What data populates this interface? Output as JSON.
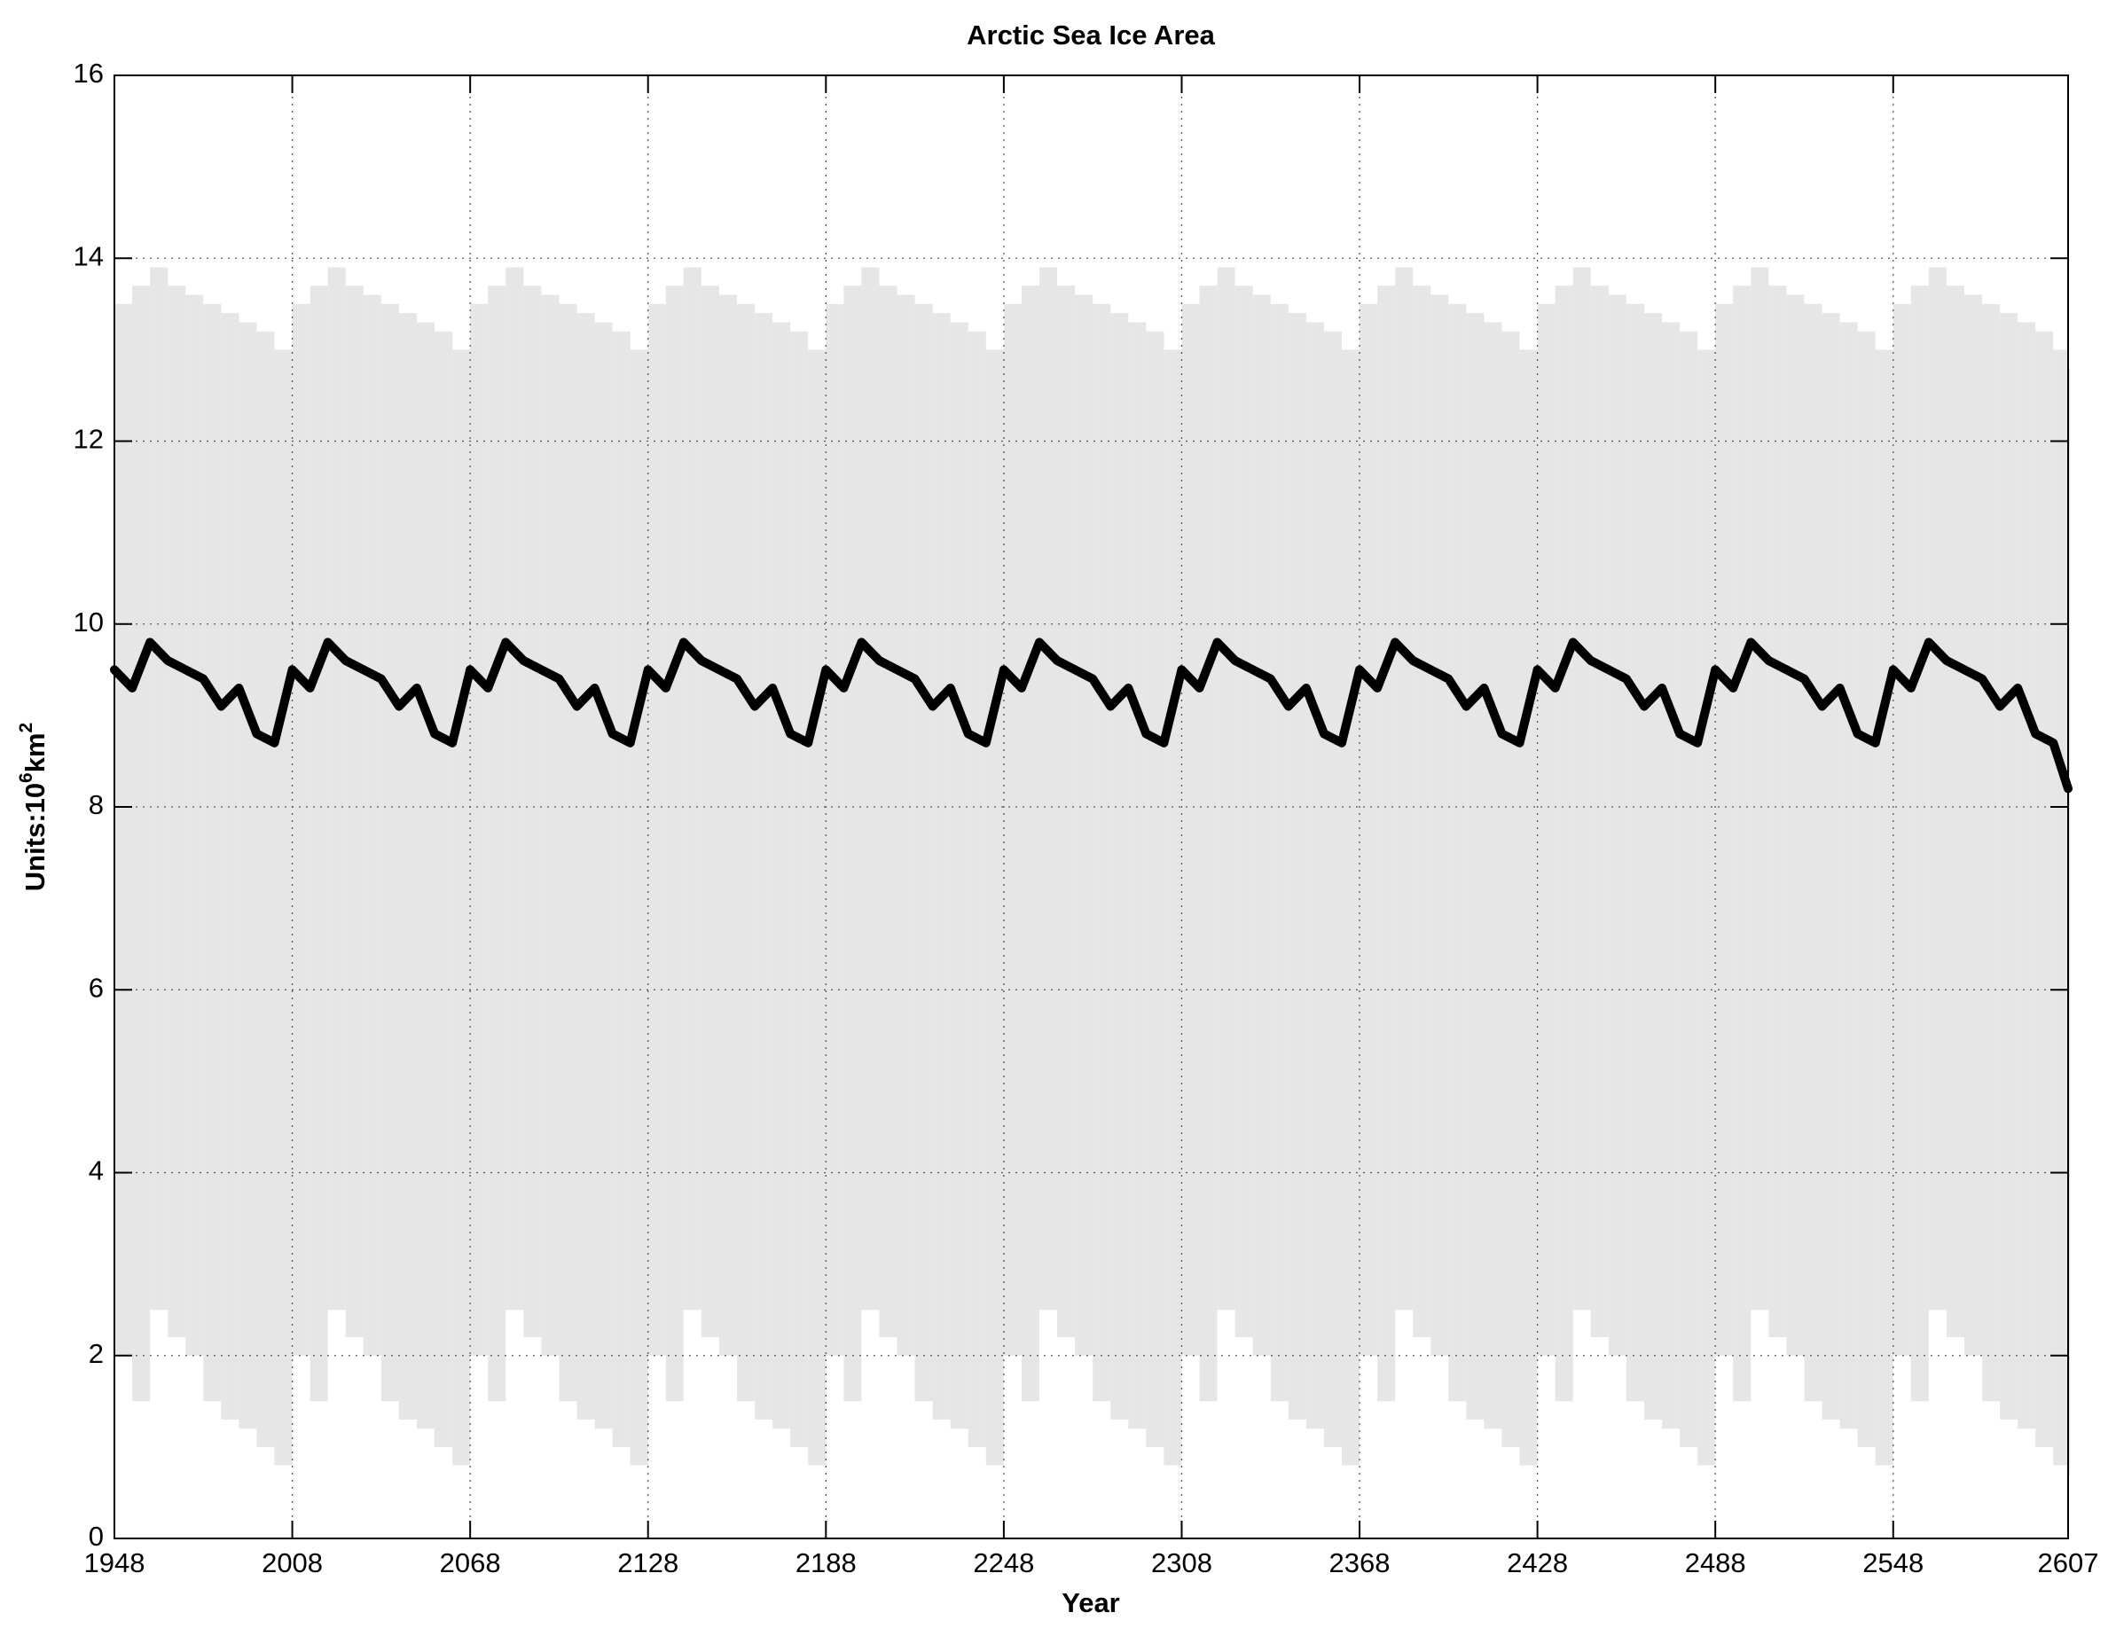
{
  "chart_data": {
    "type": "line",
    "title": "Arctic Sea Ice Area",
    "xlabel": "Year",
    "ylabel_parts": [
      "Units:10",
      "6",
      "km",
      "2"
    ],
    "x": [
      1948,
      1954,
      1960,
      1966,
      1972,
      1978,
      1984,
      1990,
      1996,
      2002,
      2008,
      2014,
      2020,
      2026,
      2032,
      2038,
      2044,
      2050,
      2056,
      2062,
      2068,
      2074,
      2080,
      2086,
      2092,
      2098,
      2104,
      2110,
      2116,
      2122,
      2128,
      2134,
      2140,
      2146,
      2152,
      2158,
      2164,
      2170,
      2176,
      2182,
      2188,
      2194,
      2200,
      2206,
      2212,
      2218,
      2224,
      2230,
      2236,
      2242,
      2248,
      2254,
      2260,
      2266,
      2272,
      2278,
      2284,
      2290,
      2296,
      2302,
      2308,
      2314,
      2320,
      2326,
      2332,
      2338,
      2344,
      2350,
      2356,
      2362,
      2368,
      2374,
      2380,
      2386,
      2392,
      2398,
      2404,
      2410,
      2416,
      2422,
      2428,
      2434,
      2440,
      2446,
      2452,
      2458,
      2464,
      2470,
      2476,
      2482,
      2488,
      2494,
      2500,
      2506,
      2512,
      2518,
      2524,
      2530,
      2536,
      2542,
      2548,
      2554,
      2560,
      2566,
      2572,
      2578,
      2584,
      2590,
      2596,
      2602,
      2607
    ],
    "series": [
      {
        "role": "mean",
        "color": "#000000",
        "values": [
          9.5,
          9.3,
          9.8,
          9.6,
          9.5,
          9.4,
          9.1,
          9.3,
          8.8,
          8.7,
          9.5,
          9.3,
          9.8,
          9.6,
          9.5,
          9.4,
          9.1,
          9.3,
          8.8,
          8.7,
          9.5,
          9.3,
          9.8,
          9.6,
          9.5,
          9.4,
          9.1,
          9.3,
          8.8,
          8.7,
          9.5,
          9.3,
          9.8,
          9.6,
          9.5,
          9.4,
          9.1,
          9.3,
          8.8,
          8.7,
          9.5,
          9.3,
          9.8,
          9.6,
          9.5,
          9.4,
          9.1,
          9.3,
          8.8,
          8.7,
          9.5,
          9.3,
          9.8,
          9.6,
          9.5,
          9.4,
          9.1,
          9.3,
          8.8,
          8.7,
          9.5,
          9.3,
          9.8,
          9.6,
          9.5,
          9.4,
          9.1,
          9.3,
          8.8,
          8.7,
          9.5,
          9.3,
          9.8,
          9.6,
          9.5,
          9.4,
          9.1,
          9.3,
          8.8,
          8.7,
          9.5,
          9.3,
          9.8,
          9.6,
          9.5,
          9.4,
          9.1,
          9.3,
          8.8,
          8.7,
          9.5,
          9.3,
          9.8,
          9.6,
          9.5,
          9.4,
          9.1,
          9.3,
          8.8,
          8.7,
          9.5,
          9.3,
          9.8,
          9.6,
          9.5,
          9.4,
          9.1,
          9.3,
          8.8,
          8.7,
          8.2
        ]
      },
      {
        "role": "max",
        "color": "#e6e6e6",
        "values": [
          13.5,
          13.7,
          13.9,
          13.7,
          13.6,
          13.5,
          13.4,
          13.3,
          13.2,
          13.0,
          13.5,
          13.7,
          13.9,
          13.7,
          13.6,
          13.5,
          13.4,
          13.3,
          13.2,
          13.0,
          13.5,
          13.7,
          13.9,
          13.7,
          13.6,
          13.5,
          13.4,
          13.3,
          13.2,
          13.0,
          13.5,
          13.7,
          13.9,
          13.7,
          13.6,
          13.5,
          13.4,
          13.3,
          13.2,
          13.0,
          13.5,
          13.7,
          13.9,
          13.7,
          13.6,
          13.5,
          13.4,
          13.3,
          13.2,
          13.0,
          13.5,
          13.7,
          13.9,
          13.7,
          13.6,
          13.5,
          13.4,
          13.3,
          13.2,
          13.0,
          13.5,
          13.7,
          13.9,
          13.7,
          13.6,
          13.5,
          13.4,
          13.3,
          13.2,
          13.0,
          13.5,
          13.7,
          13.9,
          13.7,
          13.6,
          13.5,
          13.4,
          13.3,
          13.2,
          13.0,
          13.5,
          13.7,
          13.9,
          13.7,
          13.6,
          13.5,
          13.4,
          13.3,
          13.2,
          13.0,
          13.5,
          13.7,
          13.9,
          13.7,
          13.6,
          13.5,
          13.4,
          13.3,
          13.2,
          13.0,
          13.5,
          13.7,
          13.9,
          13.7,
          13.6,
          13.5,
          13.4,
          13.3,
          13.2,
          13.0,
          12.8
        ]
      },
      {
        "role": "min",
        "color": "#e6e6e6",
        "values": [
          2.0,
          1.5,
          2.5,
          2.2,
          2.0,
          1.5,
          1.3,
          1.2,
          1.0,
          0.8,
          2.0,
          1.5,
          2.5,
          2.2,
          2.0,
          1.5,
          1.3,
          1.2,
          1.0,
          0.8,
          2.0,
          1.5,
          2.5,
          2.2,
          2.0,
          1.5,
          1.3,
          1.2,
          1.0,
          0.8,
          2.0,
          1.5,
          2.5,
          2.2,
          2.0,
          1.5,
          1.3,
          1.2,
          1.0,
          0.8,
          2.0,
          1.5,
          2.5,
          2.2,
          2.0,
          1.5,
          1.3,
          1.2,
          1.0,
          0.8,
          2.0,
          1.5,
          2.5,
          2.2,
          2.0,
          1.5,
          1.3,
          1.2,
          1.0,
          0.8,
          2.0,
          1.5,
          2.5,
          2.2,
          2.0,
          1.5,
          1.3,
          1.2,
          1.0,
          0.8,
          2.0,
          1.5,
          2.5,
          2.2,
          2.0,
          1.5,
          1.3,
          1.2,
          1.0,
          0.8,
          2.0,
          1.5,
          2.5,
          2.2,
          2.0,
          1.5,
          1.3,
          1.2,
          1.0,
          0.8,
          2.0,
          1.5,
          2.5,
          2.2,
          2.0,
          1.5,
          1.3,
          1.2,
          1.0,
          0.8,
          2.0,
          1.5,
          2.5,
          2.2,
          2.0,
          1.5,
          1.3,
          1.2,
          1.0,
          0.8,
          0.7
        ]
      }
    ],
    "xlim": [
      1948,
      2607
    ],
    "xticks": [
      1948,
      2008,
      2068,
      2128,
      2188,
      2248,
      2308,
      2368,
      2428,
      2488,
      2548,
      2607
    ],
    "ylim": [
      0,
      16
    ],
    "yticks": [
      0,
      2,
      4,
      6,
      8,
      10,
      12,
      14,
      16
    ],
    "grid": true
  }
}
